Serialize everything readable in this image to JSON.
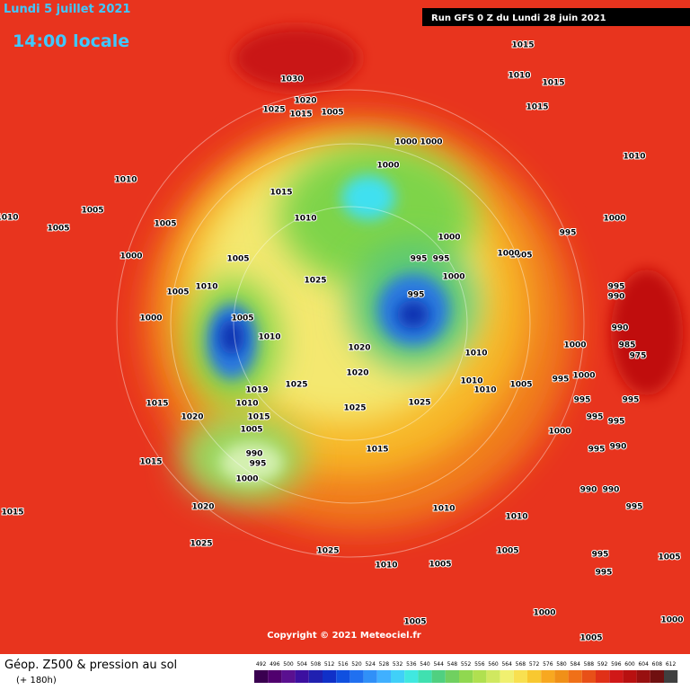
{
  "header": {
    "date": "Lundi 5 juillet 2021",
    "time": "14:00 locale",
    "run": "Run GFS 0 Z du Lundi 28 juin 2021"
  },
  "copyright": "Copyright © 2021 Meteociel.fr",
  "footer": {
    "title": "Géop. Z500 & pression au sol",
    "subtitle": "(+ 180h)"
  },
  "isobar_labels": [
    1030,
    1020,
    1025,
    1015,
    1005,
    1015,
    1010,
    1015,
    1015,
    1000,
    1000,
    1000,
    1010,
    1010,
    1005,
    1005,
    1010,
    1005,
    1015,
    1010,
    1000,
    1000,
    995,
    995,
    995,
    1000,
    1005,
    1000,
    1025,
    1005,
    1010,
    995,
    1000,
    1005,
    1010,
    1020,
    1010,
    1020,
    1025,
    1010,
    1010,
    1005,
    1015,
    1019,
    1010,
    1025,
    1025,
    1020,
    1015,
    1005,
    1015,
    990,
    995,
    1000,
    1015,
    1020,
    1015,
    1025,
    1025,
    1010,
    1005,
    1010,
    1005,
    1005,
    1005,
    1000,
    995,
    995,
    995,
    990,
    990,
    995,
    990,
    995,
    995,
    1000,
    995,
    1000,
    995,
    975,
    985,
    990,
    990,
    995,
    1005,
    1000,
    1000,
    995,
    1005,
    1000,
    1010
  ],
  "colorbar_labels": [
    492,
    496,
    500,
    504,
    508,
    512,
    516,
    520,
    524,
    528,
    532,
    536,
    540,
    544,
    548,
    552,
    556,
    560,
    564,
    568,
    572,
    576,
    580,
    584,
    588,
    592,
    596,
    600,
    604,
    608,
    612
  ]
}
